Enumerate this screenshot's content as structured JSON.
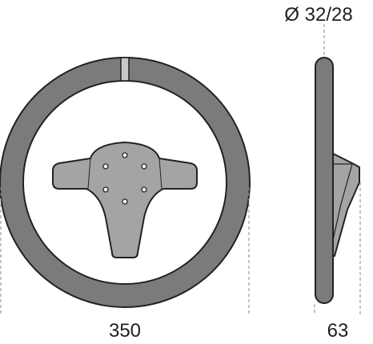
{
  "dimensions": {
    "diameter_label": "350",
    "depth_label": "63",
    "grip_label": "Ø 32/28"
  },
  "colors": {
    "grip": "#7b7b7b",
    "spoke": "#a4a4a4",
    "outline": "#222222",
    "dimension_line": "#8a8a8a"
  }
}
